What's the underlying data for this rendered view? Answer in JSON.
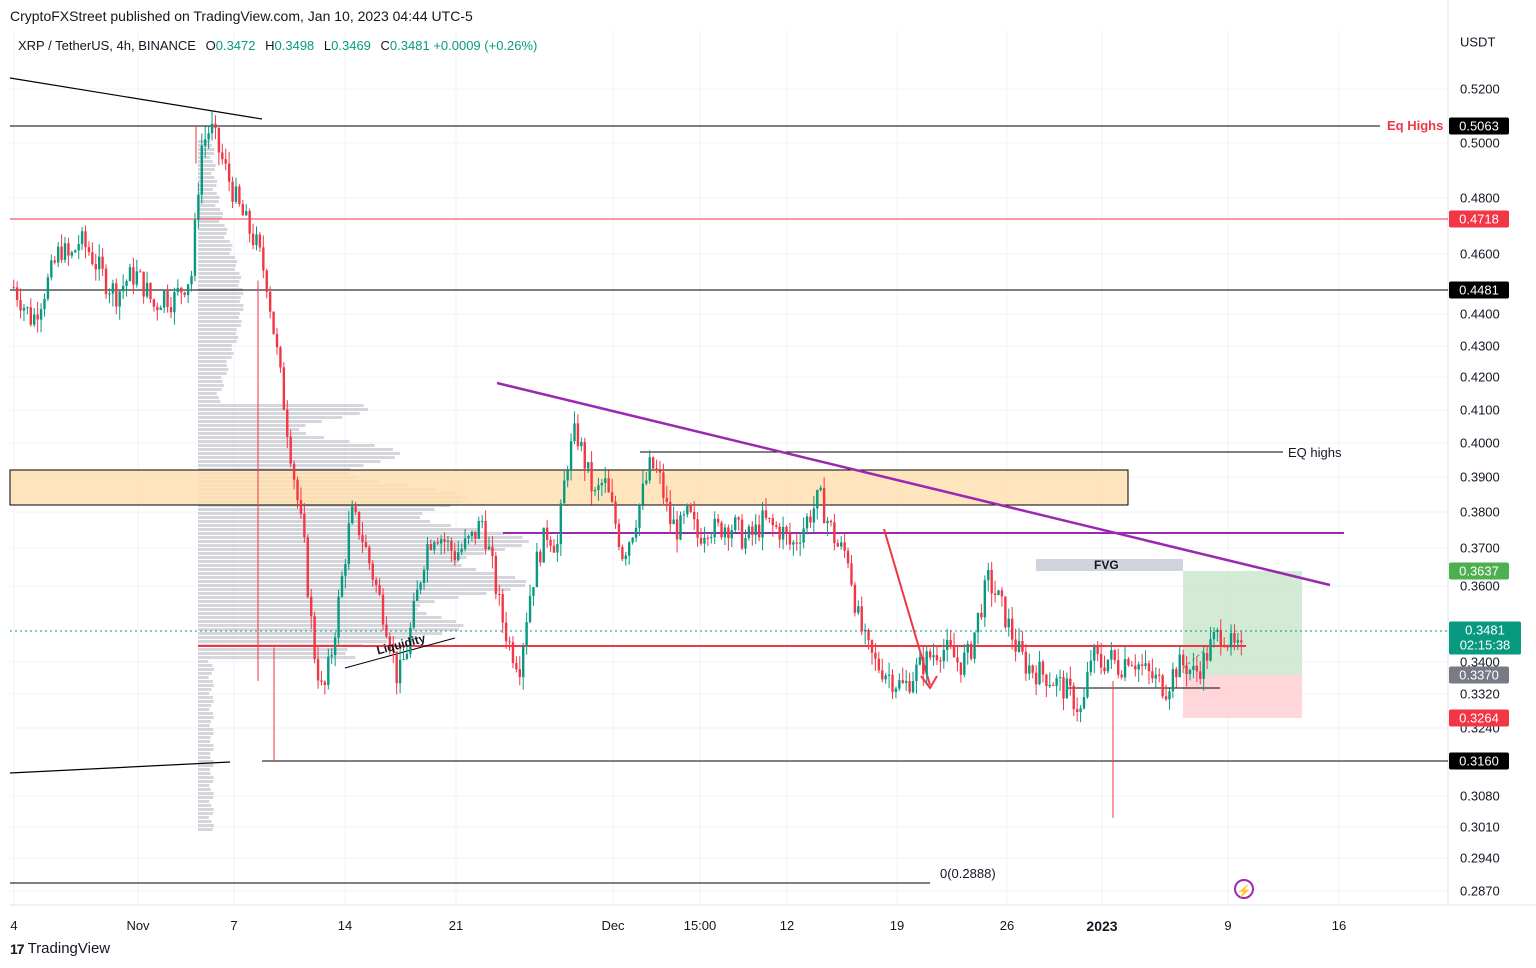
{
  "header": {
    "published": "CryptoFXStreet published on TradingView.com, Jan 10, 2023 04:44 UTC-5"
  },
  "legend": {
    "symbol": "XRP / TetherUS, 4h, BINANCE",
    "open_label": "O",
    "open": "0.3472",
    "high_label": "H",
    "high": "0.3498",
    "low_label": "L",
    "low": "0.3469",
    "close_label": "C",
    "close": "0.3481",
    "change": "+0.0009 (+0.26%)"
  },
  "price_scale": {
    "currency": "USDT",
    "ticks": [
      "0.5200",
      "0.5000",
      "0.4800",
      "0.4600",
      "0.4400",
      "0.4300",
      "0.4200",
      "0.4100",
      "0.4000",
      "0.3900",
      "0.3800",
      "0.3700",
      "0.3600",
      "0.3400",
      "0.3320",
      "0.3240",
      "0.3080",
      "0.3010",
      "0.2940",
      "0.2870"
    ],
    "badges": {
      "eq_highs_top": "0.5063",
      "red_level": "0.4718",
      "black_level_1": "0.4481",
      "target": "0.3637",
      "current_price": "0.3481",
      "countdown": "02:15:38",
      "entry": "0.3370",
      "stop": "0.3264",
      "black_level_2": "0.3160"
    }
  },
  "time_axis": [
    "4",
    "Nov",
    "7",
    "14",
    "21",
    "Dec",
    "15:00",
    "12",
    "19",
    "26",
    "2023",
    "9",
    "16"
  ],
  "annotations": {
    "eq_highs_top": "Eq Highs",
    "eq_highs": "EQ highs",
    "fvg": "FVG",
    "liquidity": "Liquidity",
    "fib_zero": "0(0.2888)"
  },
  "colors": {
    "up": "#089981",
    "down": "#f23645",
    "trendline": "#9c27b0",
    "zone": "#ffe0b2",
    "target_box": "#c8e6c9",
    "stop_box": "#ffcdd2"
  },
  "footer": {
    "brand": "TradingView"
  },
  "chart_data": {
    "type": "candlestick",
    "title": "XRP / TetherUS, 4h, BINANCE",
    "ylabel": "USDT",
    "ylim": [
      0.284,
      0.528
    ],
    "levels": [
      0.5063,
      0.4718,
      0.4481,
      0.3937,
      0.3745,
      0.3454,
      0.316,
      0.2888
    ],
    "zones": [
      {
        "name": "supply zone",
        "from": 0.3825,
        "to": 0.3925
      },
      {
        "name": "FVG",
        "from": 0.3635,
        "to": 0.3665
      }
    ],
    "position": {
      "entry": 0.337,
      "target": 0.3637,
      "stop": 0.3264
    },
    "price_path": [
      [
        0.458,
        0.453,
        0.448,
        0.455,
        0.462,
        0.47,
        0.466,
        0.472,
        0.469,
        0.464,
        0.459,
        0.456,
        0.46,
        0.462,
        0.458,
        0.452,
        0.456,
        0.454,
        0.458,
        0.462,
        0.5,
        0.506,
        0.498,
        0.49,
        0.482,
        0.476,
        0.47,
        0.46,
        0.44,
        0.42,
        0.4,
        0.38,
        0.35,
        0.335,
        0.35,
        0.37,
        0.39,
        0.385,
        0.375,
        0.365,
        0.355,
        0.34,
        0.35,
        0.365,
        0.38,
        0.385,
        0.382,
        0.378,
        0.38,
        0.383,
        0.388,
        0.375,
        0.36,
        0.35,
        0.345,
        0.365,
        0.378,
        0.385,
        0.38,
        0.405,
        0.415,
        0.405,
        0.395,
        0.4,
        0.39,
        0.378,
        0.385,
        0.395,
        0.405,
        0.4,
        0.388,
        0.385,
        0.39,
        0.383,
        0.387,
        0.385,
        0.387,
        0.386,
        0.382,
        0.384,
        0.388,
        0.386,
        0.385,
        0.38,
        0.385,
        0.39,
        0.395,
        0.387,
        0.38,
        0.378,
        0.36,
        0.35,
        0.345,
        0.343,
        0.34,
        0.338,
        0.342,
        0.345,
        0.348,
        0.35,
        0.348,
        0.345,
        0.348,
        0.36,
        0.37,
        0.365,
        0.358,
        0.35,
        0.345,
        0.343,
        0.342,
        0.34,
        0.338,
        0.335,
        0.33,
        0.348,
        0.345,
        0.347,
        0.344,
        0.348,
        0.345,
        0.342,
        0.34,
        0.338,
        0.344,
        0.345,
        0.342,
        0.346,
        0.352,
        0.355,
        0.35,
        0.3481
      ]
    ]
  }
}
